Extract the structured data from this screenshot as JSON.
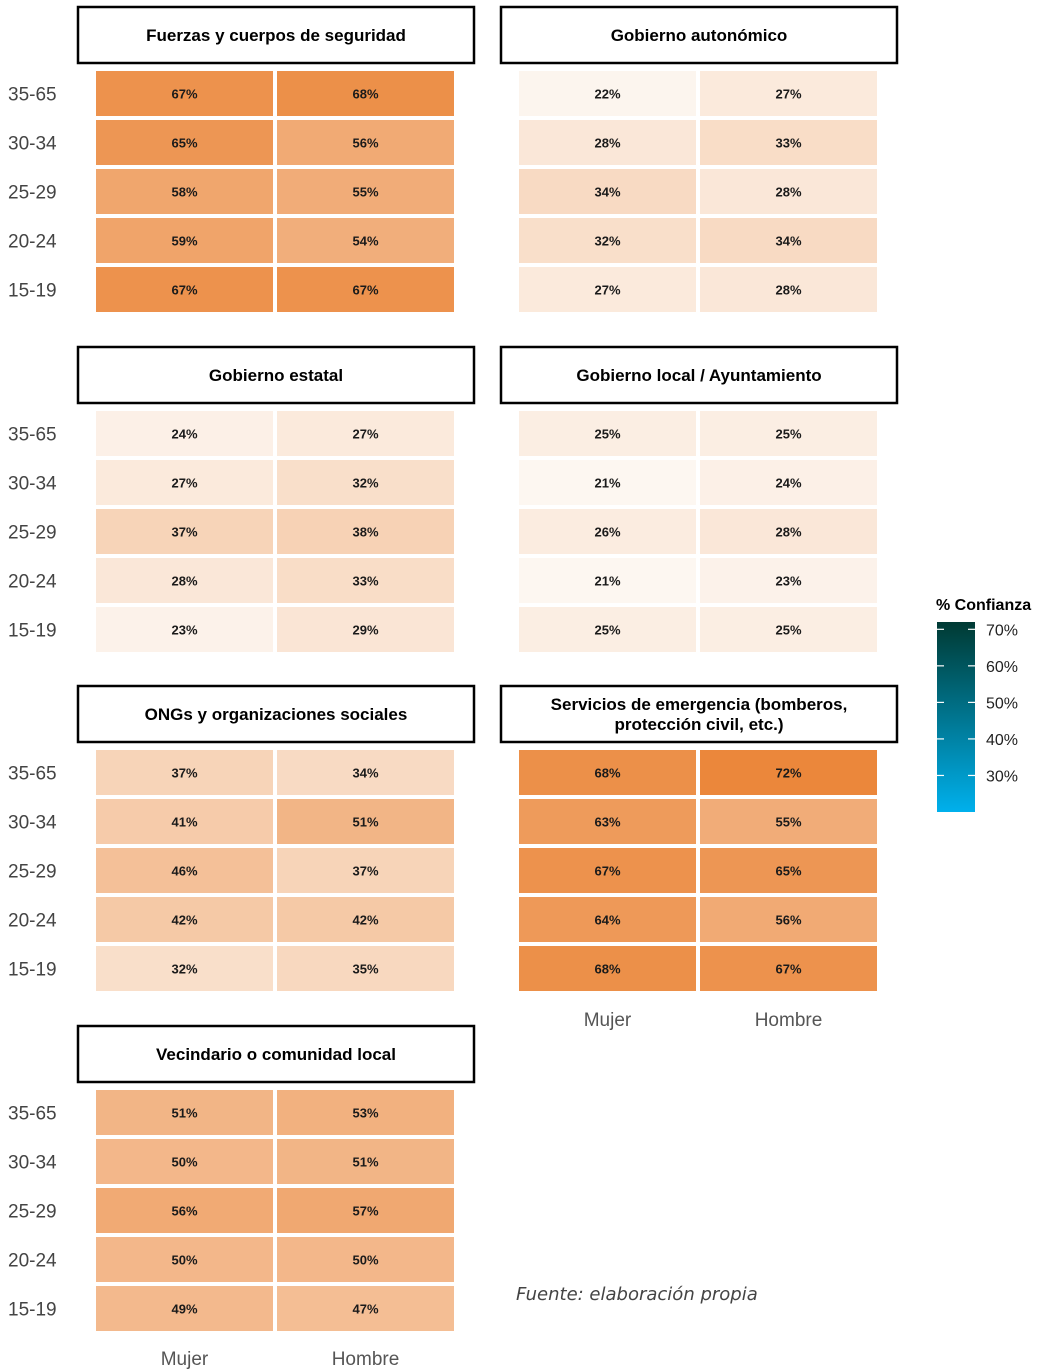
{
  "chart_data": {
    "type": "heatmap",
    "columns": [
      "Mujer",
      "Hombre"
    ],
    "rows": [
      "35-65",
      "30-34",
      "25-29",
      "20-24",
      "15-19"
    ],
    "panels": [
      {
        "title_lines": [
          "Fuerzas y cuerpos de seguridad"
        ],
        "values": [
          [
            67,
            68
          ],
          [
            65,
            56
          ],
          [
            58,
            55
          ],
          [
            59,
            54
          ],
          [
            67,
            67
          ]
        ]
      },
      {
        "title_lines": [
          "Gobierno autonómico"
        ],
        "values": [
          [
            22,
            27
          ],
          [
            28,
            33
          ],
          [
            34,
            28
          ],
          [
            32,
            34
          ],
          [
            27,
            28
          ]
        ]
      },
      {
        "title_lines": [
          "Gobierno estatal"
        ],
        "values": [
          [
            24,
            27
          ],
          [
            27,
            32
          ],
          [
            37,
            38
          ],
          [
            28,
            33
          ],
          [
            23,
            29
          ]
        ]
      },
      {
        "title_lines": [
          "Gobierno local / Ayuntamiento"
        ],
        "values": [
          [
            25,
            25
          ],
          [
            21,
            24
          ],
          [
            26,
            28
          ],
          [
            21,
            23
          ],
          [
            25,
            25
          ]
        ]
      },
      {
        "title_lines": [
          "ONGs y organizaciones sociales"
        ],
        "values": [
          [
            37,
            34
          ],
          [
            41,
            51
          ],
          [
            46,
            37
          ],
          [
            42,
            42
          ],
          [
            32,
            35
          ]
        ]
      },
      {
        "title_lines": [
          "Servicios de emergencia (bomberos,",
          "protección civil, etc.)"
        ],
        "values": [
          [
            68,
            72
          ],
          [
            63,
            55
          ],
          [
            67,
            65
          ],
          [
            64,
            56
          ],
          [
            68,
            67
          ]
        ]
      },
      {
        "title_lines": [
          "Vecindario o comunidad local"
        ],
        "values": [
          [
            51,
            53
          ],
          [
            50,
            51
          ],
          [
            56,
            57
          ],
          [
            50,
            50
          ],
          [
            49,
            47
          ]
        ]
      }
    ],
    "value_suffix": "%",
    "legend": {
      "title": "% Confianza",
      "ticks": [
        {
          "value": 70,
          "label": "70%"
        },
        {
          "value": 60,
          "label": "60%"
        },
        {
          "value": 50,
          "label": "50%"
        },
        {
          "value": 40,
          "label": "40%"
        },
        {
          "value": 30,
          "label": "30%"
        }
      ],
      "range": [
        20,
        72
      ],
      "gradient_colors": [
        "#00b0ec",
        "#003a33"
      ]
    },
    "cell_color_scale": {
      "low_value": 20,
      "high_value": 72,
      "low_color": "#fdf9f5",
      "high_color": "#eb873b"
    }
  },
  "source": "Fuente: elaboración propia"
}
